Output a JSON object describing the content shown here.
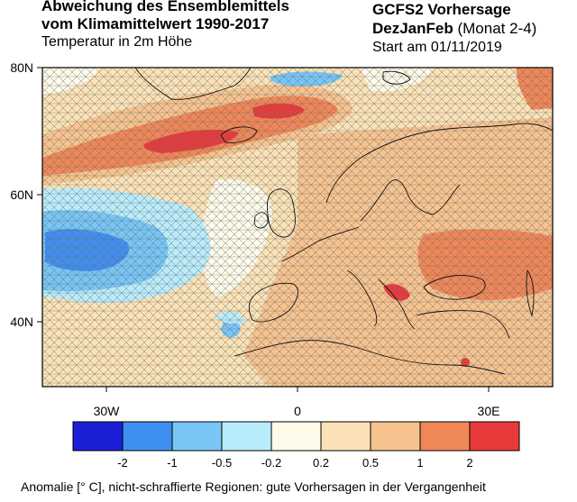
{
  "header": {
    "title_line1": "Abweichung des Ensemblemittels",
    "title_line2": "vom Klimamittelwert 1990-2017",
    "subtitle": "Temperatur in 2m Höhe",
    "model": "GCFS2 Vorhersage",
    "season": "DezJanFeb",
    "season_note": "(Monat 2-4)",
    "start": "Start am 01/11/2019"
  },
  "axes": {
    "lat_labels": [
      "80N",
      "60N",
      "40N"
    ],
    "lon_labels": [
      "30W",
      "0",
      "30E"
    ]
  },
  "colorbar": {
    "colors": [
      "#1d1fd6",
      "#3f8ff0",
      "#77c6f6",
      "#b9ecfb",
      "#fefbea",
      "#fae2b6",
      "#f6c38f",
      "#f08757",
      "#e83a3a"
    ],
    "labels": [
      "-2",
      "-1",
      "-0.5",
      "-0.2",
      "0.2",
      "0.5",
      "1",
      "2"
    ]
  },
  "footer": "Anomalie [° C], nicht-schraffierte Regionen: gute Vorhersagen in der Vergangenheit"
}
